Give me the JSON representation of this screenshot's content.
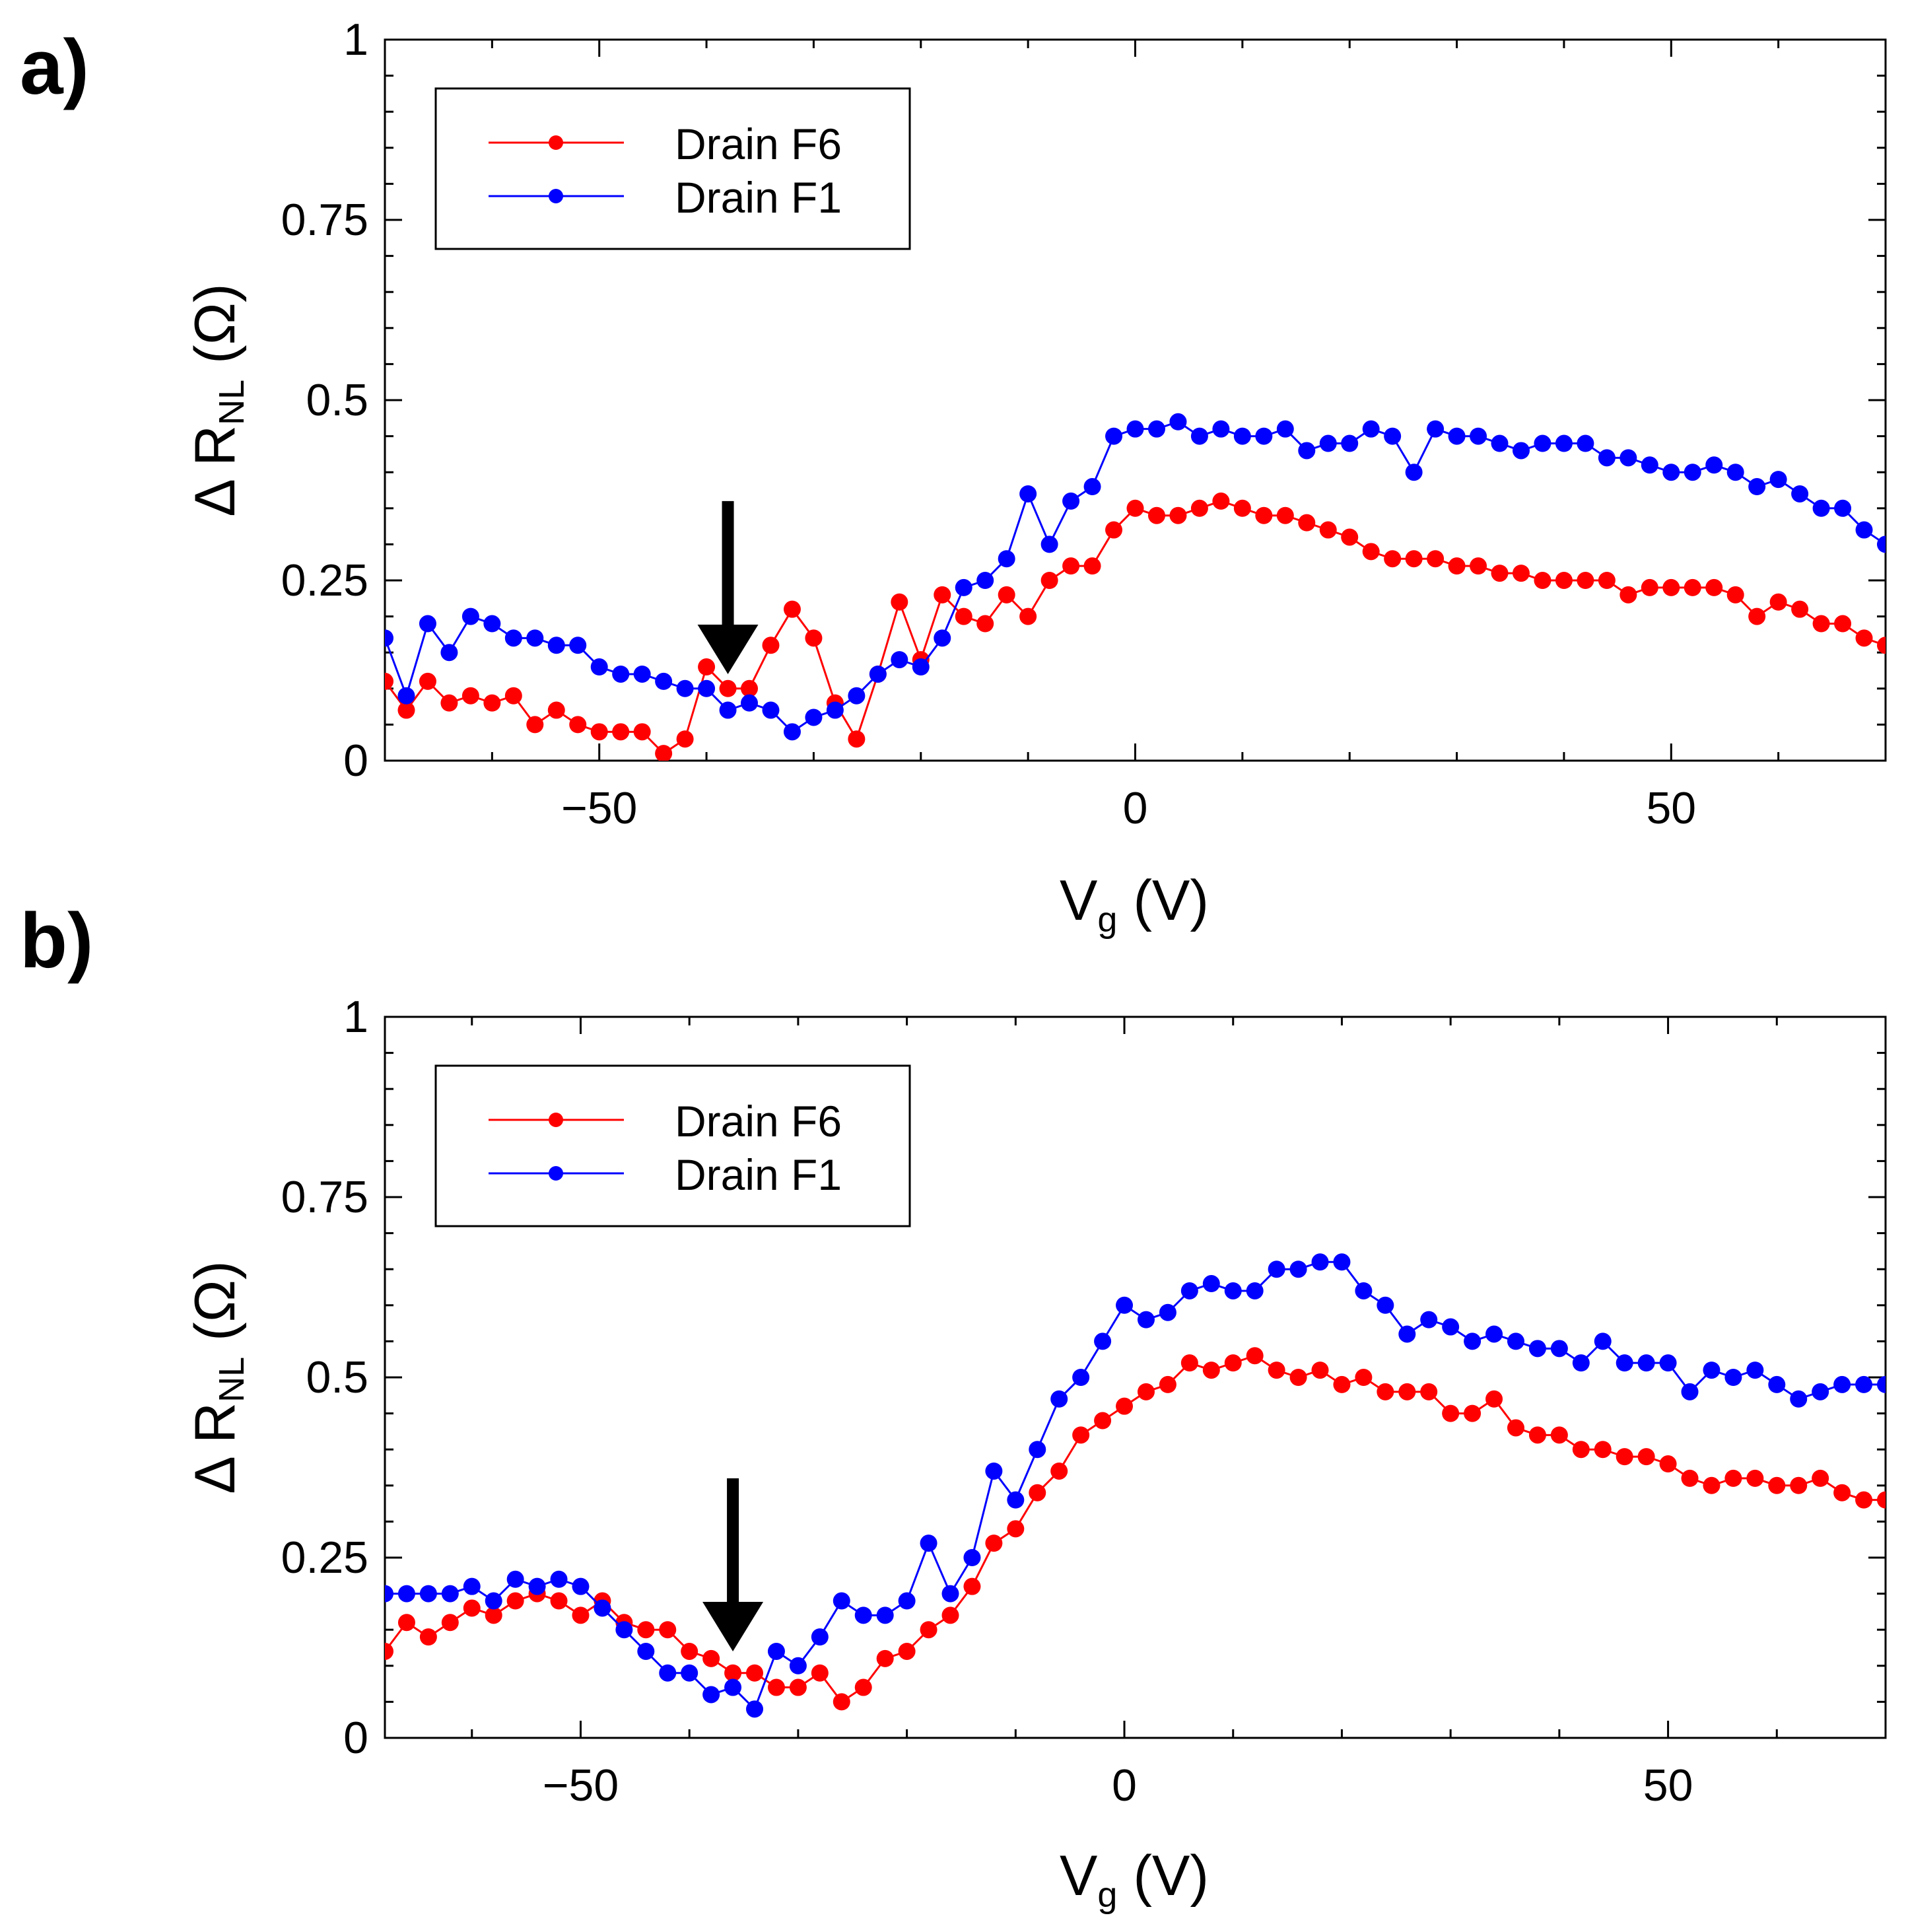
{
  "figure": {
    "panels": [
      {
        "label": "a)",
        "title": "",
        "xlabel": {
          "main": "V",
          "sub": "g",
          "unit": " (V)"
        },
        "ylabel": {
          "delta": "Δ",
          "main": " R",
          "sub": "NL",
          "unit": " (Ω)"
        },
        "xlim": [
          -70,
          70
        ],
        "ylim": [
          0,
          1
        ],
        "x_ticks": [
          {
            "value": -50,
            "label": "−50"
          },
          {
            "value": 0,
            "label": "0"
          },
          {
            "value": 50,
            "label": "50"
          }
        ],
        "y_ticks": [
          {
            "value": 0,
            "label": "0"
          },
          {
            "value": 0.25,
            "label": "0.25"
          },
          {
            "value": 0.5,
            "label": "0.5"
          },
          {
            "value": 0.75,
            "label": "0.75"
          },
          {
            "value": 1,
            "label": "1"
          }
        ],
        "legend_position": "top-left",
        "arrow_annotation": {
          "x": -38,
          "y_tip": 0.12,
          "y_tail": 0.36
        }
      },
      {
        "label": "b)",
        "title": "",
        "xlabel": {
          "main": "V",
          "sub": "g",
          "unit": " (V)"
        },
        "ylabel": {
          "delta": "Δ",
          "main": " R",
          "sub": "NL",
          "unit": " (Ω)"
        },
        "xlim": [
          -68,
          70
        ],
        "ylim": [
          0,
          1
        ],
        "x_ticks": [
          {
            "value": -50,
            "label": "−50"
          },
          {
            "value": 0,
            "label": "0"
          },
          {
            "value": 50,
            "label": "50"
          }
        ],
        "y_ticks": [
          {
            "value": 0,
            "label": "0"
          },
          {
            "value": 0.25,
            "label": "0.25"
          },
          {
            "value": 0.5,
            "label": "0.5"
          },
          {
            "value": 0.75,
            "label": "0.75"
          },
          {
            "value": 1,
            "label": "1"
          }
        ],
        "legend_position": "top-left",
        "arrow_annotation": {
          "x": -36,
          "y_tip": 0.12,
          "y_tail": 0.36
        }
      }
    ]
  },
  "chart_data": [
    {
      "type": "line",
      "panel": "a)",
      "title": "",
      "xlabel": "Vg (V)",
      "ylabel": "Δ RNL (Ω)",
      "xlim": [
        -70,
        70
      ],
      "ylim": [
        0,
        1
      ],
      "grid": false,
      "legend": "top-left",
      "series": [
        {
          "name": "Drain F6",
          "color": "#ff0000",
          "x": [
            -70,
            -68,
            -66,
            -64,
            -62,
            -60,
            -58,
            -56,
            -54,
            -52,
            -50,
            -48,
            -46,
            -44,
            -42,
            -40,
            -38,
            -36,
            -34,
            -32,
            -30,
            -28,
            -26,
            -24,
            -22,
            -20,
            -18,
            -16,
            -14,
            -12,
            -10,
            -8,
            -6,
            -4,
            -2,
            0,
            2,
            4,
            6,
            8,
            10,
            12,
            14,
            16,
            18,
            20,
            22,
            24,
            26,
            28,
            30,
            32,
            34,
            36,
            38,
            40,
            42,
            44,
            46,
            48,
            50,
            52,
            54,
            56,
            58,
            60,
            62,
            64,
            66,
            68,
            70
          ],
          "y": [
            0.11,
            0.07,
            0.11,
            0.08,
            0.09,
            0.08,
            0.09,
            0.05,
            0.07,
            0.05,
            0.04,
            0.04,
            0.04,
            0.01,
            0.03,
            0.13,
            0.1,
            0.1,
            0.16,
            0.21,
            0.17,
            0.08,
            0.03,
            0.12,
            0.22,
            0.14,
            0.23,
            0.2,
            0.19,
            0.23,
            0.2,
            0.25,
            0.27,
            0.27,
            0.32,
            0.35,
            0.34,
            0.34,
            0.35,
            0.36,
            0.35,
            0.34,
            0.34,
            0.33,
            0.32,
            0.31,
            0.29,
            0.28,
            0.28,
            0.28,
            0.27,
            0.27,
            0.26,
            0.26,
            0.25,
            0.25,
            0.25,
            0.25,
            0.23,
            0.24,
            0.24,
            0.24,
            0.24,
            0.23,
            0.2,
            0.22,
            0.21,
            0.19,
            0.19,
            0.17,
            0.16
          ]
        },
        {
          "name": "Drain F1",
          "color": "#0000ff",
          "x": [
            -70,
            -68,
            -66,
            -64,
            -62,
            -60,
            -58,
            -56,
            -54,
            -52,
            -50,
            -48,
            -46,
            -44,
            -42,
            -40,
            -38,
            -36,
            -34,
            -32,
            -30,
            -28,
            -26,
            -24,
            -22,
            -20,
            -18,
            -16,
            -14,
            -12,
            -10,
            -8,
            -6,
            -4,
            -2,
            0,
            2,
            4,
            6,
            8,
            10,
            12,
            14,
            16,
            18,
            20,
            22,
            24,
            26,
            28,
            30,
            32,
            34,
            36,
            38,
            40,
            42,
            44,
            46,
            48,
            50,
            52,
            54,
            56,
            58,
            60,
            62,
            64,
            66,
            68,
            70
          ],
          "y": [
            0.17,
            0.09,
            0.19,
            0.15,
            0.2,
            0.19,
            0.17,
            0.17,
            0.16,
            0.16,
            0.13,
            0.12,
            0.12,
            0.11,
            0.1,
            0.1,
            0.07,
            0.08,
            0.07,
            0.04,
            0.06,
            0.07,
            0.09,
            0.12,
            0.14,
            0.13,
            0.17,
            0.24,
            0.25,
            0.28,
            0.37,
            0.3,
            0.36,
            0.38,
            0.45,
            0.46,
            0.46,
            0.47,
            0.45,
            0.46,
            0.45,
            0.45,
            0.46,
            0.43,
            0.44,
            0.44,
            0.46,
            0.45,
            0.4,
            0.46,
            0.45,
            0.45,
            0.44,
            0.43,
            0.44,
            0.44,
            0.44,
            0.42,
            0.42,
            0.41,
            0.4,
            0.4,
            0.41,
            0.4,
            0.38,
            0.39,
            0.37,
            0.35,
            0.35,
            0.32,
            0.3
          ]
        }
      ]
    },
    {
      "type": "line",
      "panel": "b)",
      "title": "",
      "xlabel": "Vg (V)",
      "ylabel": "Δ RNL (Ω)",
      "xlim": [
        -68,
        70
      ],
      "ylim": [
        0,
        1
      ],
      "grid": false,
      "legend": "top-left",
      "series": [
        {
          "name": "Drain F6",
          "color": "#ff0000",
          "x": [
            -68,
            -66,
            -64,
            -62,
            -60,
            -58,
            -56,
            -54,
            -52,
            -50,
            -48,
            -46,
            -44,
            -42,
            -40,
            -38,
            -36,
            -34,
            -32,
            -30,
            -28,
            -26,
            -24,
            -22,
            -20,
            -18,
            -16,
            -14,
            -12,
            -10,
            -8,
            -6,
            -4,
            -2,
            0,
            2,
            4,
            6,
            8,
            10,
            12,
            14,
            16,
            18,
            20,
            22,
            24,
            26,
            28,
            30,
            32,
            34,
            36,
            38,
            40,
            42,
            44,
            46,
            48,
            50,
            52,
            54,
            56,
            58,
            60,
            62,
            64,
            66,
            68,
            70
          ],
          "y": [
            0.12,
            0.16,
            0.14,
            0.16,
            0.18,
            0.17,
            0.19,
            0.2,
            0.19,
            0.17,
            0.19,
            0.16,
            0.15,
            0.15,
            0.12,
            0.11,
            0.09,
            0.09,
            0.07,
            0.07,
            0.09,
            0.05,
            0.07,
            0.11,
            0.12,
            0.15,
            0.17,
            0.21,
            0.27,
            0.29,
            0.34,
            0.37,
            0.42,
            0.44,
            0.46,
            0.48,
            0.49,
            0.52,
            0.51,
            0.52,
            0.53,
            0.51,
            0.5,
            0.51,
            0.49,
            0.5,
            0.48,
            0.48,
            0.48,
            0.45,
            0.45,
            0.47,
            0.43,
            0.42,
            0.42,
            0.4,
            0.4,
            0.39,
            0.39,
            0.38,
            0.36,
            0.35,
            0.36,
            0.36,
            0.35,
            0.35,
            0.36,
            0.34,
            0.33,
            0.33
          ]
        },
        {
          "name": "Drain F1",
          "color": "#0000ff",
          "x": [
            -68,
            -66,
            -64,
            -62,
            -60,
            -58,
            -56,
            -54,
            -52,
            -50,
            -48,
            -46,
            -44,
            -42,
            -40,
            -38,
            -36,
            -34,
            -32,
            -30,
            -28,
            -26,
            -24,
            -22,
            -20,
            -18,
            -16,
            -14,
            -12,
            -10,
            -8,
            -6,
            -4,
            -2,
            0,
            2,
            4,
            6,
            8,
            10,
            12,
            14,
            16,
            18,
            20,
            22,
            24,
            26,
            28,
            30,
            32,
            34,
            36,
            38,
            40,
            42,
            44,
            46,
            48,
            50,
            52,
            54,
            56,
            58,
            60,
            62,
            64,
            66,
            68,
            70
          ],
          "y": [
            0.2,
            0.2,
            0.2,
            0.2,
            0.21,
            0.19,
            0.22,
            0.21,
            0.22,
            0.21,
            0.18,
            0.15,
            0.12,
            0.09,
            0.09,
            0.06,
            0.07,
            0.04,
            0.12,
            0.1,
            0.14,
            0.19,
            0.17,
            0.17,
            0.19,
            0.27,
            0.2,
            0.25,
            0.37,
            0.33,
            0.4,
            0.47,
            0.5,
            0.55,
            0.6,
            0.58,
            0.59,
            0.62,
            0.63,
            0.62,
            0.62,
            0.65,
            0.65,
            0.66,
            0.66,
            0.62,
            0.6,
            0.56,
            0.58,
            0.57,
            0.55,
            0.56,
            0.55,
            0.54,
            0.54,
            0.52,
            0.55,
            0.52,
            0.52,
            0.52,
            0.48,
            0.51,
            0.5,
            0.51,
            0.49,
            0.47,
            0.48,
            0.49,
            0.49,
            0.49
          ]
        }
      ]
    }
  ]
}
